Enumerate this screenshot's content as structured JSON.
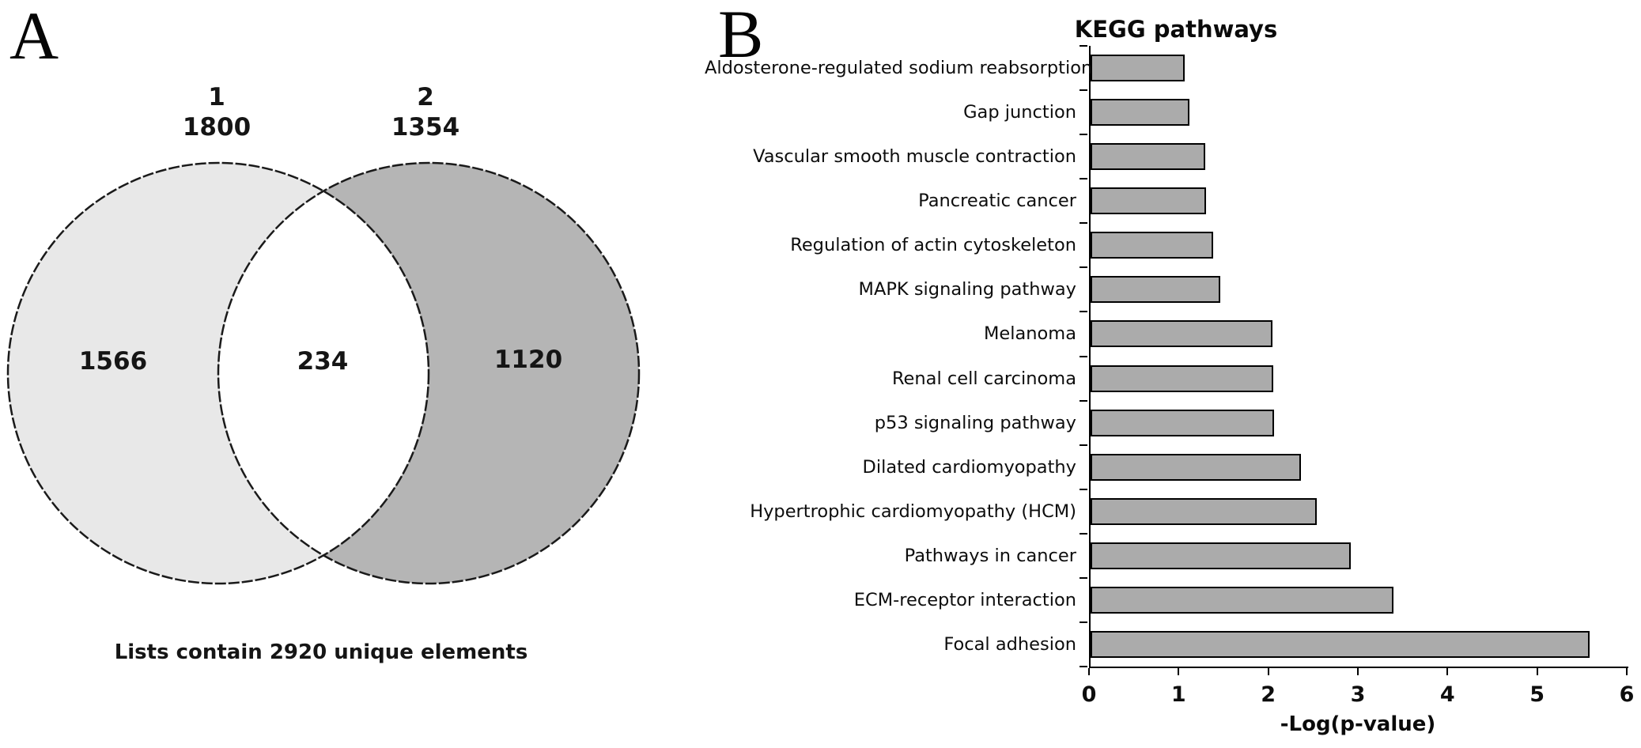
{
  "panel_a": {
    "panel_letter": "A",
    "set1": {
      "label": "1",
      "total": "1800",
      "unique_count": "1566"
    },
    "set2": {
      "label": "2",
      "total": "1354",
      "unique_count": "1120"
    },
    "overlap_count": "234",
    "caption": "Lists contain 2920 unique elements",
    "colors": {
      "left_fill": "#e8e8e8",
      "right_fill": "#b5b5b5",
      "overlap_fill": "#ffffff",
      "outline": "#1a1a1a"
    }
  },
  "panel_b": {
    "panel_letter": "B"
  },
  "chart_data": {
    "type": "bar",
    "orientation": "horizontal",
    "title": "KEGG pathways",
    "xlabel": "-Log(p-value)",
    "ylabel": "",
    "xlim": [
      0,
      6
    ],
    "xticks": [
      "0",
      "1",
      "2",
      "3",
      "4",
      "5",
      "6"
    ],
    "grid": false,
    "legend": false,
    "bar_color": "#ababab",
    "bar_border_color": "#000000",
    "categories": [
      "Aldosterone-regulated sodium reabsorption",
      "Gap junction",
      "Vascular smooth muscle contraction",
      "Pancreatic cancer",
      "Regulation of actin cytoskeleton",
      "MAPK signaling pathway",
      "Melanoma",
      "Renal cell carcinoma",
      "p53 signaling pathway",
      "Dilated cardiomyopathy",
      "Hypertrophic cardiomyopathy (HCM)",
      "Pathways in cancer",
      "ECM-receptor interaction",
      "Focal adhesion"
    ],
    "values": [
      1.05,
      1.1,
      1.28,
      1.29,
      1.37,
      1.45,
      2.03,
      2.04,
      2.05,
      2.35,
      2.52,
      2.9,
      3.38,
      5.57
    ]
  }
}
